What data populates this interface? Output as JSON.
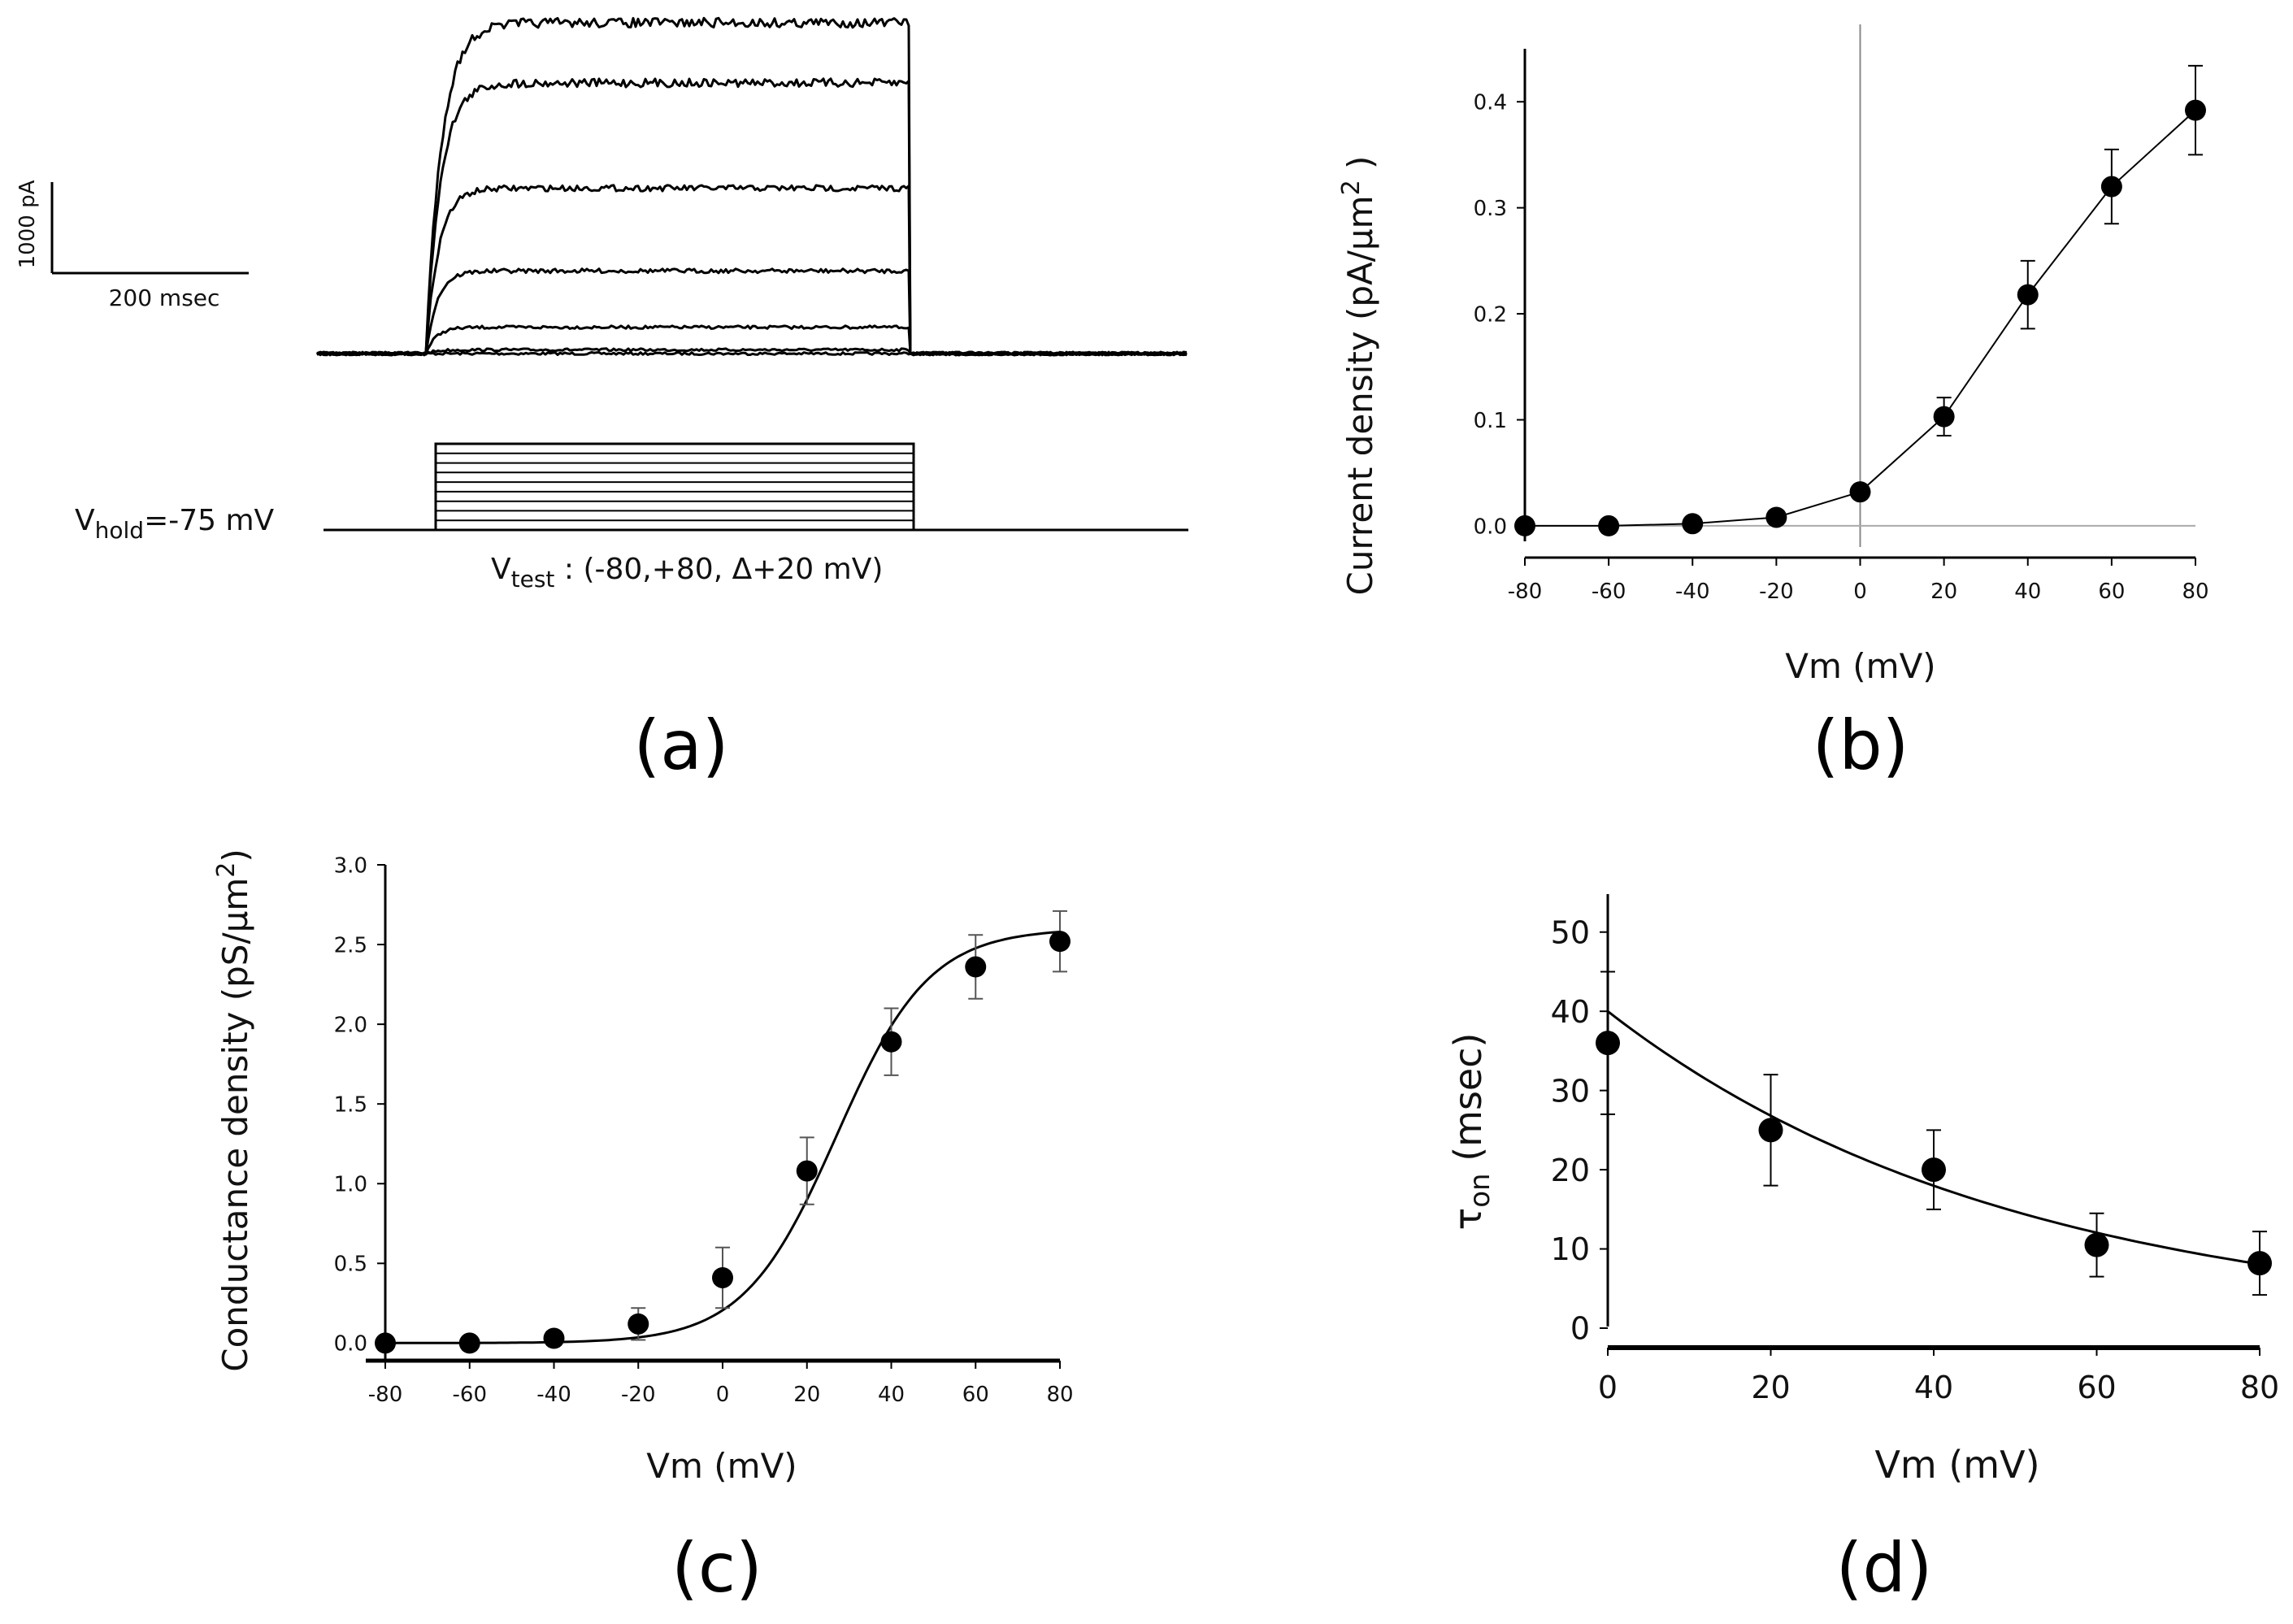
{
  "chart_data": [
    {
      "panel": "a",
      "type": "line",
      "description_label": "(a)",
      "scale_bar": {
        "current_label": "1000 pA",
        "time_label": "200 msec"
      },
      "protocol": {
        "hold_label": "V",
        "hold_sub": "hold",
        "hold_value": "=-75 mV",
        "test_label": "V",
        "test_sub": "test",
        "test_value": " : (-80,+80, Δ+20 mV)",
        "hold_mV": -75,
        "test_range_mV": [
          -80,
          80
        ],
        "test_step_mV": 20,
        "steps": 9
      },
      "trace_steady_levels_relative": [
        0.0,
        0.01,
        0.07,
        0.22,
        0.44,
        0.72,
        0.88
      ]
    },
    {
      "panel": "b",
      "type": "line",
      "description_label": "(b)",
      "xlabel": "Vm (mV)",
      "ylabel": "Current density (pA/μm",
      "ylabel_sup": "2",
      "ylabel_end": " )",
      "xlim": [
        -80,
        80
      ],
      "ylim": [
        -0.02,
        0.45
      ],
      "xticks": [
        "-80",
        "-60",
        "-40",
        "-20",
        "0",
        "20",
        "40",
        "60",
        "80"
      ],
      "yticks": [
        "0.0",
        "0.1",
        "0.2",
        "0.3",
        "0.4"
      ],
      "x": [
        -80,
        -60,
        -40,
        -20,
        0,
        20,
        40,
        60,
        80
      ],
      "y": [
        0.0,
        0.0,
        0.002,
        0.008,
        0.032,
        0.103,
        0.218,
        0.32,
        0.392
      ],
      "yerr": [
        0.0,
        0.0,
        0.0,
        0.0,
        0.0,
        0.018,
        0.032,
        0.035,
        0.042
      ]
    },
    {
      "panel": "c",
      "type": "line",
      "description_label": "(c)",
      "xlabel": "Vm (mV)",
      "ylabel": "Conductance density (pS/μm",
      "ylabel_sup": "2",
      "ylabel_end": ")",
      "xlim": [
        -80,
        80
      ],
      "ylim": [
        -0.1,
        3.0
      ],
      "xticks": [
        "-80",
        "-60",
        "-40",
        "-20",
        "0",
        "20",
        "40",
        "60",
        "80"
      ],
      "yticks": [
        "0.0",
        "0.5",
        "1.0",
        "1.5",
        "2.0",
        "2.5",
        "3.0"
      ],
      "x": [
        -80,
        -60,
        -40,
        -20,
        0,
        20,
        40,
        60,
        80
      ],
      "y": [
        0.0,
        0.0,
        0.03,
        0.12,
        0.41,
        1.08,
        1.89,
        2.36,
        2.52
      ],
      "yerr": [
        0.0,
        0.0,
        0.0,
        0.1,
        0.19,
        0.21,
        0.21,
        0.2,
        0.19
      ],
      "fit": {
        "type": "boltzmann",
        "gmax": 2.6,
        "v_half": 27,
        "k": 11
      }
    },
    {
      "panel": "d",
      "type": "line",
      "description_label": "(d)",
      "xlabel": "Vm (mV)",
      "ylabel": "τ",
      "ylabel_sub": "on",
      "ylabel_units": "(msec)",
      "xlim": [
        0,
        80
      ],
      "ylim": [
        0,
        55
      ],
      "xticks": [
        "0",
        "20",
        "40",
        "60",
        "80"
      ],
      "yticks": [
        "0",
        "10",
        "20",
        "30",
        "40",
        "50"
      ],
      "x": [
        0,
        20,
        40,
        60,
        80
      ],
      "y": [
        36,
        25,
        20,
        10.5,
        8.2
      ],
      "yerr": [
        9,
        7,
        5,
        4,
        4
      ],
      "fit": {
        "type": "exponential",
        "a": 40,
        "tau_mV": 50
      }
    }
  ]
}
